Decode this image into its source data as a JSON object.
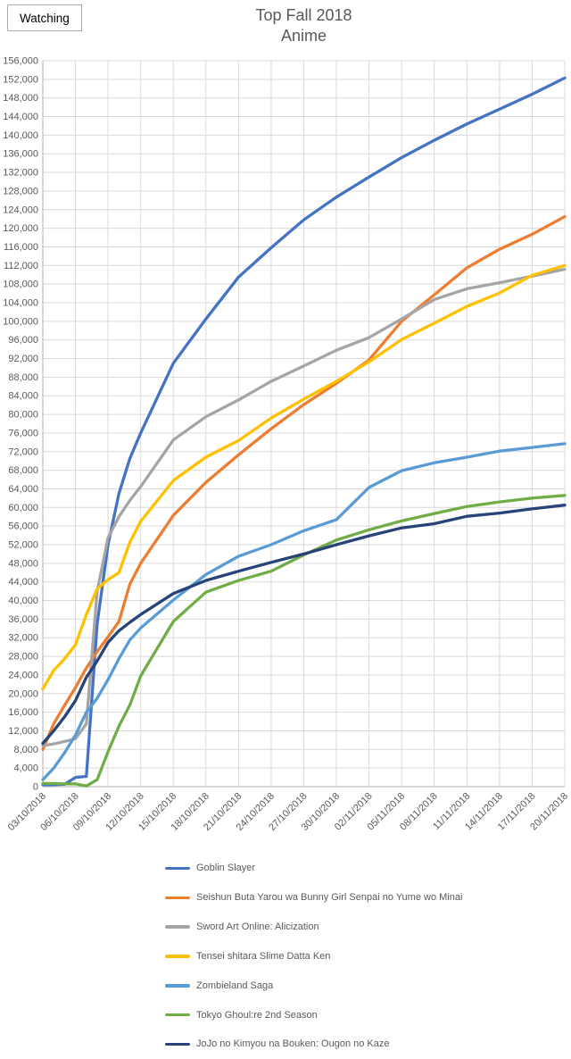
{
  "watching_button": {
    "label": "Watching"
  },
  "chart_data": {
    "type": "line",
    "title": "Top Fall 2018 Anime",
    "title_lines": [
      "Top Fall 2018",
      "Anime"
    ],
    "legend_position": "bottom-left-column",
    "grid": true,
    "y_axis": {
      "min": 0,
      "max": 156000,
      "step": 4000,
      "format": "thousands-comma"
    },
    "x_axis": {
      "tick_interval_days": 3,
      "tick_labels": [
        "03/10/2018",
        "06/10/2018",
        "09/10/2018",
        "12/10/2018",
        "15/10/2018",
        "18/10/2018",
        "21/10/2018",
        "24/10/2018",
        "27/10/2018",
        "30/10/2018",
        "02/11/2018",
        "05/11/2018",
        "08/11/2018",
        "11/11/2018",
        "14/11/2018",
        "17/11/2018",
        "20/11/2018"
      ]
    },
    "days": [
      0,
      1,
      2,
      3,
      4,
      5,
      6,
      7,
      8,
      9,
      12,
      15,
      18,
      21,
      24,
      27,
      30,
      33,
      36,
      39,
      42,
      45,
      48
    ],
    "series": [
      {
        "id": "goblin-slayer",
        "name": "Goblin Slayer",
        "color": "#4472C4",
        "values": [
          400,
          400,
          500,
          2000,
          2200,
          35000,
          52000,
          63000,
          70500,
          76000,
          91000,
          100500,
          109500,
          115800,
          121800,
          126700,
          131000,
          135200,
          138900,
          142400,
          145600,
          148800,
          152300
        ]
      },
      {
        "id": "seishun-buta-yarou",
        "name": "Seishun Buta Yarou wa Bunny Girl Senpai no Yume wo Minai",
        "color": "#ED7D31",
        "values": [
          8000,
          13500,
          17500,
          21300,
          25500,
          29000,
          32200,
          35500,
          43500,
          48000,
          58300,
          65400,
          71300,
          76900,
          82100,
          86700,
          91700,
          100000,
          105700,
          111500,
          115500,
          118700,
          122500
        ]
      },
      {
        "id": "sword-art-online-alicization",
        "name": "Sword Art Online: Alicization",
        "color": "#A5A5A5",
        "values": [
          8800,
          9200,
          9700,
          10300,
          13500,
          42000,
          53500,
          58000,
          61500,
          64500,
          74500,
          79500,
          83100,
          87100,
          90400,
          93800,
          96500,
          100500,
          104700,
          107000,
          108300,
          109700,
          111200
        ]
      },
      {
        "id": "tensei-shitara-slime-datta-ken",
        "name": "Tensei shitara Slime Datta Ken",
        "color": "#FFC000",
        "values": [
          21000,
          25000,
          27500,
          30500,
          37000,
          42500,
          44500,
          46000,
          52500,
          57000,
          65800,
          70800,
          74400,
          79200,
          83300,
          87100,
          91300,
          96100,
          99600,
          103200,
          106100,
          109900,
          112000
        ]
      },
      {
        "id": "zombieland-saga",
        "name": "Zombieland Saga",
        "color": "#5B9BD5",
        "values": [
          1500,
          4000,
          7300,
          11100,
          16000,
          19000,
          23000,
          27500,
          31500,
          34100,
          40100,
          45600,
          49500,
          52000,
          55000,
          57400,
          64300,
          67900,
          69600,
          70800,
          72100,
          72900,
          73700
        ]
      },
      {
        "id": "tokyo-ghoul-re-2nd-season",
        "name": "Tokyo Ghoul:re 2nd Season",
        "color": "#70AD47",
        "values": [
          700,
          700,
          600,
          600,
          150,
          1500,
          7500,
          13000,
          17500,
          23800,
          35500,
          41800,
          44300,
          46300,
          49800,
          53000,
          55200,
          57100,
          58700,
          60200,
          61200,
          62000,
          62600
        ]
      },
      {
        "id": "jojo-ougon-no-kaze",
        "name": "JoJo no Kimyou na Bouken: Ougon no Kaze",
        "color": "#264478",
        "values": [
          9300,
          12000,
          15000,
          18500,
          23500,
          27000,
          31000,
          33500,
          35300,
          37000,
          41500,
          44300,
          46300,
          48200,
          50000,
          52000,
          53900,
          55600,
          56500,
          58100,
          58800,
          59700,
          60500
        ]
      }
    ],
    "colors": {
      "gridline": "#D9D9D9",
      "axis_line": "#BFBFBF",
      "tick_label": "#595959",
      "title": "#595959"
    }
  }
}
